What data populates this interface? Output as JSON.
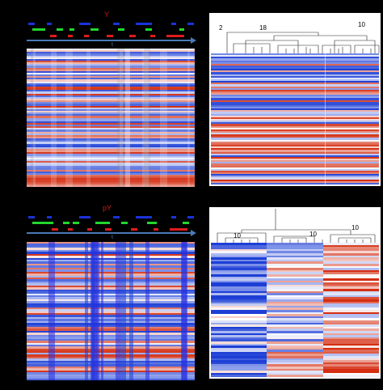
{
  "panels": {
    "top_left": {
      "label": "Y",
      "time_label": "t"
    },
    "bottom_left": {
      "label": "pY",
      "time_label": "t"
    },
    "top_right": {
      "cluster_counts": [
        "2",
        "18",
        "10"
      ]
    },
    "bottom_right": {
      "cluster_counts": [
        "10",
        "10",
        "10"
      ]
    }
  },
  "colors": {
    "high": "#d42e12",
    "low": "#1d3fd6",
    "mid": "#ffffff",
    "marker_blue": "#1a33d8",
    "marker_green": "#22d62e",
    "marker_red": "#e01b1b",
    "axis": "#4a7ab5"
  }
}
